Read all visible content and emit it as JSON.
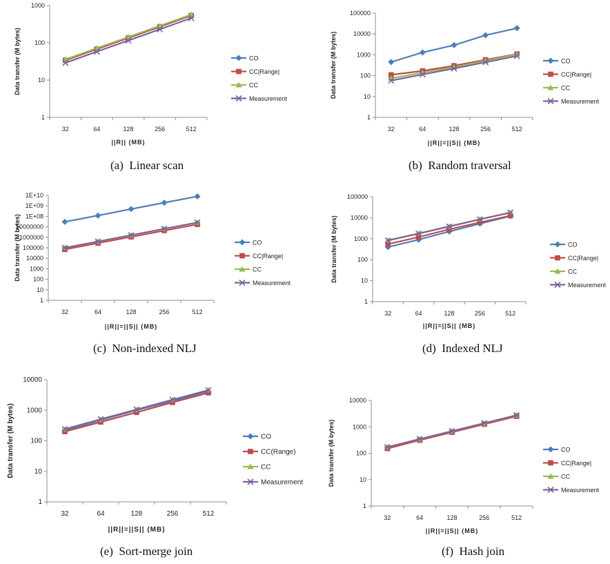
{
  "colors": {
    "CO": "#4a7ebb",
    "CC|Range|": "#be4b48",
    "CC(Range)": "#be4b48",
    "CC": "#98b954",
    "Measurement": "#7d60a0",
    "axis": "#8c8c8c"
  },
  "chart_data": [
    {
      "id": "a",
      "type": "line",
      "caption": "(a)  Linear scan",
      "ylabel": "Data transfer (M bytes)",
      "xlabel": "||R|| (MB)",
      "log_y": true,
      "ylim": [
        1,
        1000
      ],
      "yticks": [
        "1",
        "10",
        "100",
        "1000"
      ],
      "categories": [
        "32",
        "64",
        "128",
        "256",
        "512"
      ],
      "legend_placement": "right",
      "series": [
        {
          "name": "CO",
          "marker": "diamond",
          "values": [
            34,
            68,
            135,
            270,
            540
          ]
        },
        {
          "name": "CC|Range|",
          "marker": "square",
          "values": [
            34,
            68,
            135,
            270,
            540
          ]
        },
        {
          "name": "CC",
          "marker": "triangle",
          "values": [
            36,
            72,
            143,
            286,
            570
          ]
        },
        {
          "name": "Measurement",
          "marker": "x",
          "values": [
            29,
            58,
            115,
            230,
            460
          ]
        }
      ]
    },
    {
      "id": "b",
      "type": "line",
      "caption": "(b)  Random traversal",
      "ylabel": "Data transfer (M bytes)",
      "xlabel": "||R||=||S|| (MB)",
      "log_y": true,
      "ylim": [
        1,
        100000
      ],
      "yticks": [
        "1",
        "10",
        "100",
        "1000",
        "10000",
        "100000"
      ],
      "categories": [
        "32",
        "64",
        "128",
        "256",
        "512"
      ],
      "legend_placement": "right",
      "series": [
        {
          "name": "CO",
          "marker": "diamond",
          "values": [
            450,
            1300,
            2900,
            8700,
            19000
          ]
        },
        {
          "name": "CC|Range|",
          "marker": "square",
          "values": [
            110,
            170,
            300,
            580,
            1100
          ]
        },
        {
          "name": "CC",
          "marker": "triangle",
          "values": [
            75,
            140,
            260,
            520,
            1050
          ]
        },
        {
          "name": "Measurement",
          "marker": "x",
          "values": [
            58,
            115,
            220,
            440,
            880
          ]
        }
      ]
    },
    {
      "id": "c",
      "type": "line",
      "caption": "(c)  Non-indexed NLJ",
      "ylabel": "Data transfer (M bytes)",
      "xlabel": "||R||=||S|| (MB)",
      "log_y": true,
      "ylim": [
        1,
        10000000000
      ],
      "yticks": [
        "1",
        "10",
        "100",
        "1000",
        "10000",
        "100000",
        "1000000",
        "10000000",
        "1E+08",
        "1E+09",
        "1E+10"
      ],
      "categories": [
        "32",
        "64",
        "128",
        "256",
        "512"
      ],
      "legend_placement": "right",
      "series": [
        {
          "name": "CO",
          "marker": "diamond",
          "values": [
            30000000,
            120000000,
            500000000,
            2000000000,
            8000000000
          ]
        },
        {
          "name": "CC|Range|",
          "marker": "square",
          "values": [
            70000,
            280000,
            1100000,
            4400000,
            17000000
          ]
        },
        {
          "name": "CC",
          "marker": "triangle",
          "values": [
            100000,
            400000,
            1600000,
            6500000,
            26000000
          ]
        },
        {
          "name": "Measurement",
          "marker": "x",
          "values": [
            100000,
            400000,
            1600000,
            6500000,
            26000000
          ]
        }
      ]
    },
    {
      "id": "d",
      "type": "line",
      "caption": "(d)  Indexed NLJ",
      "ylabel": "Data transfer (M bytes)",
      "xlabel": "||R||=||S|| (MB)",
      "log_y": true,
      "ylim": [
        1,
        100000
      ],
      "yticks": [
        "1",
        "10",
        "100",
        "1000",
        "10000",
        "100000"
      ],
      "categories": [
        "32",
        "64",
        "128",
        "256",
        "512"
      ],
      "legend_placement": "right",
      "series": [
        {
          "name": "CO",
          "marker": "diamond",
          "values": [
            400,
            900,
            2200,
            5200,
            12000
          ]
        },
        {
          "name": "CC|Range|",
          "marker": "square",
          "values": [
            550,
            1200,
            2800,
            6000,
            12500
          ]
        },
        {
          "name": "CC",
          "marker": "triangle",
          "values": [
            850,
            1800,
            3900,
            8500,
            18000
          ]
        },
        {
          "name": "Measurement",
          "marker": "x",
          "values": [
            820,
            1750,
            3800,
            8300,
            17500
          ]
        }
      ]
    },
    {
      "id": "e",
      "type": "line",
      "caption": "(e)  Sort-merge join",
      "ylabel": "Data transfer (M bytes)",
      "xlabel": "||R||=||S|| (MB)",
      "log_y": true,
      "ylim": [
        1,
        10000
      ],
      "yticks": [
        "1",
        "10",
        "100",
        "1000",
        "10000"
      ],
      "categories": [
        "32",
        "64",
        "128",
        "256",
        "512"
      ],
      "legend_placement": "right",
      "series": [
        {
          "name": "CO",
          "marker": "diamond",
          "values": [
            220,
            470,
            1000,
            2000,
            4200
          ]
        },
        {
          "name": "CC(Range)",
          "marker": "square",
          "values": [
            200,
            410,
            850,
            1800,
            3700
          ]
        },
        {
          "name": "CC",
          "marker": "triangle",
          "values": [
            240,
            500,
            1050,
            2200,
            4600
          ]
        },
        {
          "name": "Measurement",
          "marker": "x",
          "values": [
            240,
            510,
            1060,
            2200,
            4500
          ]
        }
      ]
    },
    {
      "id": "f",
      "type": "line",
      "caption": "(f)  Hash join",
      "ylabel": "Data transfer (M bytes)",
      "xlabel": "||R||=||S|| (MB)",
      "log_y": true,
      "ylim": [
        1,
        10000
      ],
      "yticks": [
        "1",
        "10",
        "100",
        "1000",
        "10000"
      ],
      "categories": [
        "32",
        "64",
        "128",
        "256",
        "512"
      ],
      "legend_placement": "right",
      "series": [
        {
          "name": "CO",
          "marker": "diamond",
          "values": [
            165,
            330,
            660,
            1320,
            2650
          ]
        },
        {
          "name": "CC|Range|",
          "marker": "square",
          "values": [
            150,
            310,
            620,
            1250,
            2500
          ]
        },
        {
          "name": "CC",
          "marker": "triangle",
          "values": [
            170,
            340,
            680,
            1360,
            2720
          ]
        },
        {
          "name": "Measurement",
          "marker": "x",
          "values": [
            170,
            345,
            690,
            1380,
            2750
          ]
        }
      ]
    }
  ]
}
